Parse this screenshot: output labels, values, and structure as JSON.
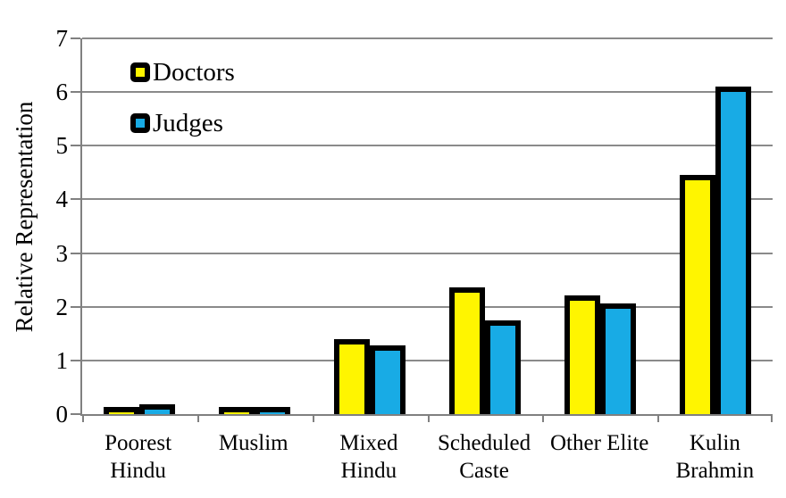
{
  "chart_data": {
    "type": "bar",
    "title": "",
    "xlabel": "",
    "ylabel": "Relative Representation",
    "ylim": [
      0,
      7
    ],
    "yticks": [
      0,
      1,
      2,
      3,
      4,
      5,
      6,
      7
    ],
    "grid": true,
    "legend_position": "top-left-inside",
    "categories": [
      "Poorest Hindu",
      "Muslim",
      "Mixed Hindu",
      "Scheduled Caste",
      "Other Elite",
      "Kulin Brahmin"
    ],
    "category_labels": [
      "Poorest\nHindu",
      "Muslim",
      "Mixed\nHindu",
      "Scheduled\nCaste",
      "Other Elite",
      "Kulin\nBrahmin"
    ],
    "series": [
      {
        "name": "Doctors",
        "color": "#FFF500",
        "values": [
          0.08,
          0.11,
          1.4,
          2.36,
          2.21,
          4.46
        ]
      },
      {
        "name": "Judges",
        "color": "#18ABE5",
        "values": [
          0.18,
          0.14,
          1.28,
          1.74,
          2.06,
          6.1
        ]
      }
    ],
    "bar_border_color": "#000000",
    "gridline_color": "#8a8a8a",
    "axis_color": "#808080"
  }
}
